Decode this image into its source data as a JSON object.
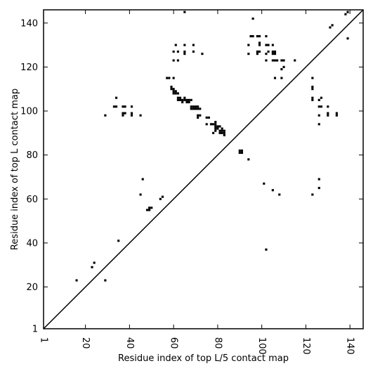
{
  "chart_data": {
    "type": "scatter",
    "title": "",
    "xlabel": "Residue index of top L/5 contact map",
    "ylabel": "Residue index of top L contact map",
    "xlim": [
      1,
      146
    ],
    "ylim": [
      1,
      146
    ],
    "xticks": [
      1,
      20,
      40,
      60,
      80,
      100,
      120,
      140
    ],
    "yticks": [
      1,
      20,
      40,
      60,
      80,
      100,
      120,
      140
    ],
    "grid": false,
    "diagonal": true,
    "marker": "square",
    "color": "#000000",
    "points": [
      [
        16,
        23
      ],
      [
        23,
        29
      ],
      [
        24,
        31
      ],
      [
        29,
        23
      ],
      [
        35,
        41
      ],
      [
        29,
        98
      ],
      [
        33,
        102
      ],
      [
        34,
        102
      ],
      [
        34,
        106
      ],
      [
        37,
        102
      ],
      [
        38,
        102
      ],
      [
        37,
        98
      ],
      [
        37,
        99
      ],
      [
        38,
        99
      ],
      [
        41,
        102
      ],
      [
        41,
        99
      ],
      [
        41,
        98
      ],
      [
        45,
        98
      ],
      [
        45,
        62
      ],
      [
        46,
        69
      ],
      [
        48,
        55
      ],
      [
        49,
        55
      ],
      [
        49,
        56
      ],
      [
        50,
        56
      ],
      [
        54,
        60
      ],
      [
        55,
        61
      ],
      [
        57,
        115
      ],
      [
        58,
        115
      ],
      [
        60,
        115
      ],
      [
        59,
        111
      ],
      [
        59,
        110
      ],
      [
        60,
        110
      ],
      [
        60,
        109
      ],
      [
        61,
        109
      ],
      [
        60,
        108
      ],
      [
        61,
        108
      ],
      [
        62,
        108
      ],
      [
        62,
        106
      ],
      [
        62,
        105
      ],
      [
        63,
        105
      ],
      [
        63,
        106
      ],
      [
        64,
        105
      ],
      [
        64,
        104
      ],
      [
        65,
        105
      ],
      [
        65,
        106
      ],
      [
        66,
        105
      ],
      [
        66,
        104
      ],
      [
        67,
        104
      ],
      [
        67,
        105
      ],
      [
        68,
        105
      ],
      [
        68,
        102
      ],
      [
        69,
        102
      ],
      [
        68,
        101
      ],
      [
        69,
        101
      ],
      [
        70,
        101
      ],
      [
        70,
        102
      ],
      [
        71,
        101
      ],
      [
        71,
        102
      ],
      [
        72,
        101
      ],
      [
        71,
        98
      ],
      [
        72,
        98
      ],
      [
        71,
        97
      ],
      [
        60,
        123
      ],
      [
        60,
        127
      ],
      [
        61,
        130
      ],
      [
        62,
        127
      ],
      [
        62,
        123
      ],
      [
        65,
        130
      ],
      [
        65,
        127
      ],
      [
        65,
        126
      ],
      [
        69,
        127
      ],
      [
        69,
        130
      ],
      [
        73,
        126
      ],
      [
        65,
        145
      ],
      [
        75,
        94
      ],
      [
        75,
        97
      ],
      [
        76,
        97
      ],
      [
        77,
        94
      ],
      [
        78,
        94
      ],
      [
        78,
        90
      ],
      [
        79,
        95
      ],
      [
        79,
        94
      ],
      [
        79,
        93
      ],
      [
        79,
        92
      ],
      [
        79,
        91
      ],
      [
        80,
        93
      ],
      [
        80,
        92
      ],
      [
        81,
        91
      ],
      [
        81,
        90
      ],
      [
        81,
        93
      ],
      [
        82,
        92
      ],
      [
        82,
        91
      ],
      [
        82,
        90
      ],
      [
        83,
        91
      ],
      [
        83,
        90
      ],
      [
        83,
        89
      ],
      [
        90,
        81
      ],
      [
        90,
        82
      ],
      [
        91,
        81
      ],
      [
        91,
        82
      ],
      [
        94,
        78
      ],
      [
        94,
        126
      ],
      [
        94,
        130
      ],
      [
        95,
        134
      ],
      [
        96,
        134
      ],
      [
        96,
        142
      ],
      [
        98,
        134
      ],
      [
        98,
        127
      ],
      [
        98,
        126
      ],
      [
        99,
        127
      ],
      [
        99,
        130
      ],
      [
        99,
        131
      ],
      [
        99,
        134
      ],
      [
        102,
        126
      ],
      [
        103,
        127
      ],
      [
        102,
        130
      ],
      [
        103,
        130
      ],
      [
        102,
        134
      ],
      [
        102,
        123
      ],
      [
        105,
        130
      ],
      [
        105,
        127
      ],
      [
        105,
        126
      ],
      [
        106,
        126
      ],
      [
        106,
        127
      ],
      [
        105,
        123
      ],
      [
        106,
        123
      ],
      [
        106,
        115
      ],
      [
        107,
        123
      ],
      [
        109,
        123
      ],
      [
        110,
        123
      ],
      [
        109,
        119
      ],
      [
        109,
        115
      ],
      [
        110,
        120
      ],
      [
        115,
        123
      ],
      [
        101,
        67
      ],
      [
        102,
        37
      ],
      [
        105,
        64
      ],
      [
        108,
        62
      ],
      [
        123,
        115
      ],
      [
        123,
        111
      ],
      [
        123,
        110
      ],
      [
        123,
        106
      ],
      [
        123,
        105
      ],
      [
        126,
        105
      ],
      [
        127,
        106
      ],
      [
        126,
        102
      ],
      [
        127,
        102
      ],
      [
        130,
        102
      ],
      [
        126,
        98
      ],
      [
        126,
        94
      ],
      [
        130,
        98
      ],
      [
        130,
        99
      ],
      [
        134,
        99
      ],
      [
        134,
        98
      ],
      [
        126,
        69
      ],
      [
        126,
        65
      ],
      [
        123,
        62
      ],
      [
        131,
        138
      ],
      [
        132,
        139
      ],
      [
        138,
        144
      ],
      [
        139,
        145
      ],
      [
        139,
        133
      ]
    ]
  }
}
